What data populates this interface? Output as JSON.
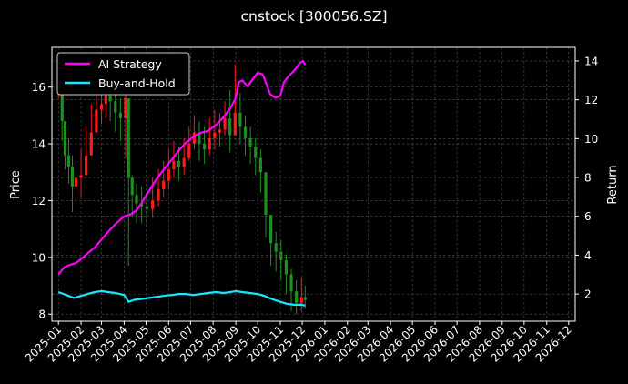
{
  "chart_data": {
    "type": "line",
    "title": "cnstock [300056.SZ]",
    "ylabel_left": "Price",
    "ylabel_right": "Return",
    "ylim_left": [
      7.75,
      17.4
    ],
    "ylim_right": [
      0.6,
      14.7
    ],
    "left_ticks": [
      8,
      10,
      12,
      14,
      16
    ],
    "right_ticks": [
      2,
      4,
      6,
      8,
      10,
      12,
      14
    ],
    "xlim": [
      "2024-12-23",
      "2026-12-10"
    ],
    "x_ticks": [
      "2025-01",
      "2025-02",
      "2025-03",
      "2025-04",
      "2025-05",
      "2025-06",
      "2025-07",
      "2025-08",
      "2025-09",
      "2025-10",
      "2025-11",
      "2025-12",
      "2026-01",
      "2026-02",
      "2026-03",
      "2026-04",
      "2026-05",
      "2026-06",
      "2026-07",
      "2026-08",
      "2026-09",
      "2026-10",
      "2026-11",
      "2026-12"
    ],
    "grid": true,
    "legend": {
      "placement": "top-left",
      "entries": [
        "AI Strategy",
        "Buy-and-Hold"
      ]
    },
    "colors": {
      "background": "#000000",
      "up": "#ff1a1a",
      "down": "#1f8f1f",
      "ai": "#ff00ff",
      "bh": "#19e6ff",
      "grid": "#5a5a5a"
    },
    "price_series": {
      "name": "Price",
      "axis": "left",
      "x": [
        "2025-01-01",
        "2025-01-06",
        "2025-01-10",
        "2025-01-15",
        "2025-01-20",
        "2025-01-25",
        "2025-02-01",
        "2025-02-08",
        "2025-02-15",
        "2025-02-22",
        "2025-03-01",
        "2025-03-07",
        "2025-03-13",
        "2025-03-20",
        "2025-03-27",
        "2025-04-03",
        "2025-04-07",
        "2025-04-12",
        "2025-04-18",
        "2025-04-25",
        "2025-05-02",
        "2025-05-10",
        "2025-05-18",
        "2025-05-25",
        "2025-06-01",
        "2025-06-08",
        "2025-06-15",
        "2025-06-22",
        "2025-06-29",
        "2025-07-06",
        "2025-07-13",
        "2025-07-20",
        "2025-07-27",
        "2025-08-03",
        "2025-08-10",
        "2025-08-17",
        "2025-08-24",
        "2025-08-31",
        "2025-09-07",
        "2025-09-14",
        "2025-09-21",
        "2025-09-28",
        "2025-10-05",
        "2025-10-12",
        "2025-10-19",
        "2025-10-26",
        "2025-11-02",
        "2025-11-09",
        "2025-11-16",
        "2025-11-23",
        "2025-11-30",
        "2025-12-05"
      ],
      "values": [
        16.2,
        14.8,
        13.6,
        13.2,
        12.5,
        12.8,
        12.9,
        13.6,
        14.4,
        15.2,
        15.4,
        15.7,
        15.5,
        15.1,
        14.9,
        15.6,
        12.8,
        12.2,
        11.9,
        11.8,
        11.7,
        12.0,
        12.4,
        12.7,
        13.1,
        13.4,
        13.2,
        13.5,
        14.0,
        14.4,
        14.0,
        13.8,
        14.2,
        14.4,
        14.5,
        14.9,
        14.3,
        15.1,
        14.6,
        14.2,
        13.9,
        13.5,
        13.0,
        11.5,
        10.5,
        10.2,
        9.9,
        9.4,
        8.8,
        8.4,
        8.6,
        8.5
      ],
      "highs": [
        17.1,
        16.0,
        14.6,
        14.2,
        13.6,
        13.4,
        13.8,
        14.6,
        15.4,
        16.0,
        16.0,
        16.4,
        16.3,
        15.9,
        15.6,
        16.0,
        14.1,
        12.9,
        12.6,
        12.5,
        12.3,
        12.8,
        13.1,
        13.4,
        13.8,
        14.1,
        13.9,
        14.2,
        14.6,
        15.0,
        14.8,
        14.6,
        14.9,
        15.2,
        15.1,
        15.5,
        15.9,
        16.8,
        15.8,
        15.0,
        14.6,
        14.2,
        13.8,
        12.3,
        11.2,
        10.9,
        10.6,
        10.1,
        9.6,
        9.2,
        9.3,
        9.0
      ],
      "lows": [
        15.6,
        14.1,
        13.1,
        12.6,
        11.6,
        12.0,
        12.1,
        12.9,
        13.6,
        14.5,
        14.7,
        14.9,
        14.8,
        14.4,
        14.1,
        13.5,
        9.7,
        11.4,
        11.2,
        11.2,
        11.1,
        11.4,
        11.8,
        12.1,
        12.4,
        12.8,
        12.7,
        12.9,
        13.4,
        13.8,
        13.4,
        13.3,
        13.6,
        13.8,
        13.9,
        14.3,
        13.7,
        14.4,
        14.0,
        13.6,
        13.3,
        12.9,
        12.3,
        10.7,
        9.7,
        9.5,
        9.2,
        8.7,
        8.1,
        8.0,
        8.1,
        8.2
      ]
    },
    "series": [
      {
        "name": "AI Strategy",
        "axis": "right",
        "x": [
          "2025-01-01",
          "2025-01-05",
          "2025-01-10",
          "2025-01-17",
          "2025-01-25",
          "2025-02-01",
          "2025-02-10",
          "2025-02-20",
          "2025-03-01",
          "2025-03-10",
          "2025-03-20",
          "2025-04-01",
          "2025-04-10",
          "2025-04-18",
          "2025-04-25",
          "2025-05-05",
          "2025-05-15",
          "2025-05-25",
          "2025-06-05",
          "2025-06-15",
          "2025-06-25",
          "2025-07-05",
          "2025-07-15",
          "2025-07-25",
          "2025-08-05",
          "2025-08-15",
          "2025-08-25",
          "2025-09-01",
          "2025-09-05",
          "2025-09-10",
          "2025-09-17",
          "2025-09-25",
          "2025-10-01",
          "2025-10-08",
          "2025-10-12",
          "2025-10-18",
          "2025-10-25",
          "2025-11-01",
          "2025-11-06",
          "2025-11-12",
          "2025-11-20",
          "2025-11-28",
          "2025-12-02",
          "2025-12-05"
        ],
        "values": [
          3.0,
          3.2,
          3.4,
          3.5,
          3.6,
          3.8,
          4.1,
          4.4,
          4.8,
          5.2,
          5.6,
          6.0,
          6.1,
          6.3,
          6.7,
          7.3,
          7.9,
          8.4,
          8.9,
          9.4,
          9.8,
          10.1,
          10.3,
          10.4,
          10.7,
          11.1,
          11.6,
          12.1,
          12.9,
          13.0,
          12.7,
          13.1,
          13.4,
          13.3,
          12.9,
          12.3,
          12.1,
          12.2,
          12.9,
          13.2,
          13.5,
          13.9,
          14.0,
          13.8
        ]
      },
      {
        "name": "Buy-and-Hold",
        "axis": "right",
        "x": [
          "2025-01-01",
          "2025-01-08",
          "2025-01-15",
          "2025-01-22",
          "2025-02-01",
          "2025-02-10",
          "2025-02-20",
          "2025-03-01",
          "2025-03-10",
          "2025-03-20",
          "2025-04-01",
          "2025-04-07",
          "2025-04-15",
          "2025-04-25",
          "2025-05-05",
          "2025-05-15",
          "2025-05-25",
          "2025-06-05",
          "2025-06-15",
          "2025-06-25",
          "2025-07-05",
          "2025-07-15",
          "2025-07-25",
          "2025-08-05",
          "2025-08-15",
          "2025-08-25",
          "2025-09-01",
          "2025-09-10",
          "2025-09-20",
          "2025-10-01",
          "2025-10-10",
          "2025-10-20",
          "2025-11-01",
          "2025-11-10",
          "2025-11-20",
          "2025-12-01",
          "2025-12-05"
        ],
        "values": [
          2.1,
          2.0,
          1.9,
          1.8,
          1.9,
          2.0,
          2.1,
          2.15,
          2.1,
          2.05,
          1.95,
          1.6,
          1.7,
          1.75,
          1.8,
          1.85,
          1.9,
          1.95,
          2.0,
          2.0,
          1.95,
          2.0,
          2.05,
          2.1,
          2.05,
          2.1,
          2.15,
          2.1,
          2.05,
          2.0,
          1.9,
          1.75,
          1.6,
          1.5,
          1.45,
          1.45,
          1.4
        ]
      }
    ]
  }
}
